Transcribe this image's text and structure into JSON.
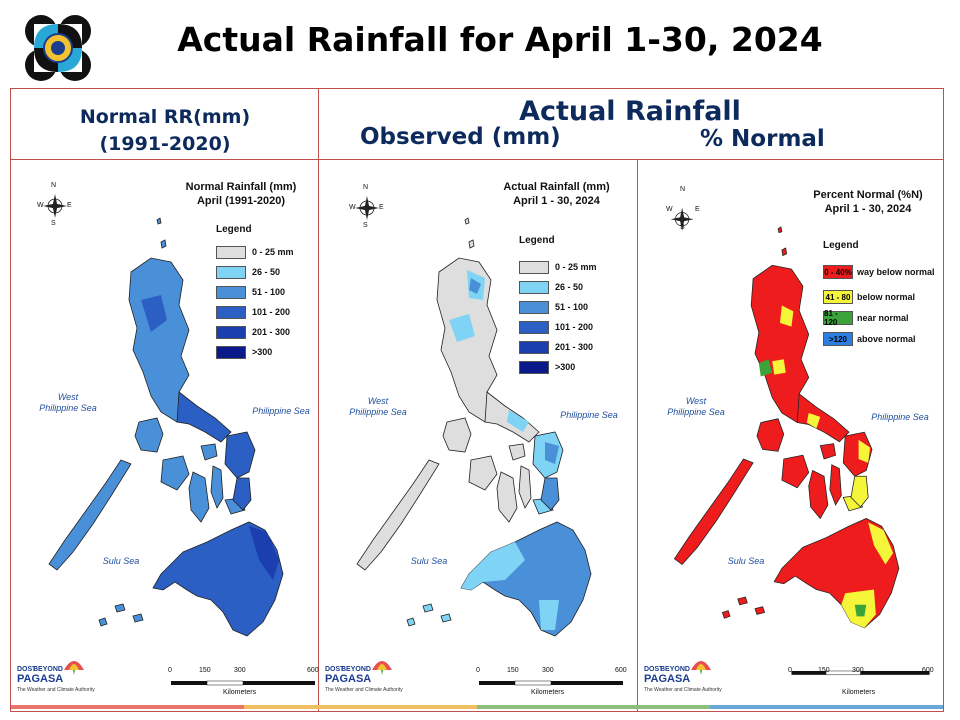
{
  "title": "Actual Rainfall for April 1-30, 2024",
  "headers": {
    "normal_line1": "Normal RR(mm)",
    "normal_line2": "(1991-2020)",
    "actual": "Actual Rainfall",
    "observed": "Observed (mm)",
    "percent": "% Normal"
  },
  "common": {
    "compass": {
      "n": "N",
      "s": "S",
      "e": "E",
      "w": "W"
    },
    "seas": {
      "west_1": "West",
      "west_2": "Philippine Sea",
      "east": "Philippine Sea",
      "south": "Sulu Sea"
    },
    "scale": {
      "ticks": [
        "0",
        "150",
        "300",
        "600"
      ],
      "unit": "Kilometers"
    },
    "logo_text": "PAGASA",
    "logo_small": "DOST",
    "logo_small_2": "BEYOND",
    "tagline": "The Weather and Climate Authority",
    "footer_colors": [
      "#e8746c",
      "#f0c060",
      "#8cc07a",
      "#6aa8d8"
    ]
  },
  "maps": [
    {
      "title_line1": "Normal Rainfall (mm)",
      "title_line2": "April (1991-2020)",
      "legend_title": "Legend",
      "legend": [
        {
          "label": "0 - 25 mm",
          "color": "#dedede"
        },
        {
          "label": "26 - 50",
          "color": "#7fd3f5"
        },
        {
          "label": "51 - 100",
          "color": "#4a90d9"
        },
        {
          "label": "101 - 200",
          "color": "#2b5fc4"
        },
        {
          "label": "201 - 300",
          "color": "#1b3fae"
        },
        {
          "label": ">300",
          "color": "#0b1a8a"
        }
      ]
    },
    {
      "title_line1": "Actual Rainfall (mm)",
      "title_line2": "April 1 - 30, 2024",
      "legend_title": "Legend",
      "legend": [
        {
          "label": "0 - 25 mm",
          "color": "#dedede"
        },
        {
          "label": "26 - 50",
          "color": "#7fd3f5"
        },
        {
          "label": "51 - 100",
          "color": "#4a90d9"
        },
        {
          "label": "101 - 200",
          "color": "#2b5fc4"
        },
        {
          "label": "201 - 300",
          "color": "#1b3fae"
        },
        {
          "label": ">300",
          "color": "#0b1a8a"
        }
      ]
    },
    {
      "title_line1": "Percent Normal (%N)",
      "title_line2": "April 1 - 30, 2024",
      "legend_title": "Legend",
      "legend": [
        {
          "code": "0 - 40%",
          "label": "way below normal",
          "color": "#ee1c1c"
        },
        {
          "code": "41 - 80",
          "label": "below normal",
          "color": "#f5f53a"
        },
        {
          "code": "81 - 120",
          "label": "near normal",
          "color": "#3aa33a"
        },
        {
          "code": ">120",
          "label": "above normal",
          "color": "#2b7de0"
        }
      ]
    }
  ]
}
